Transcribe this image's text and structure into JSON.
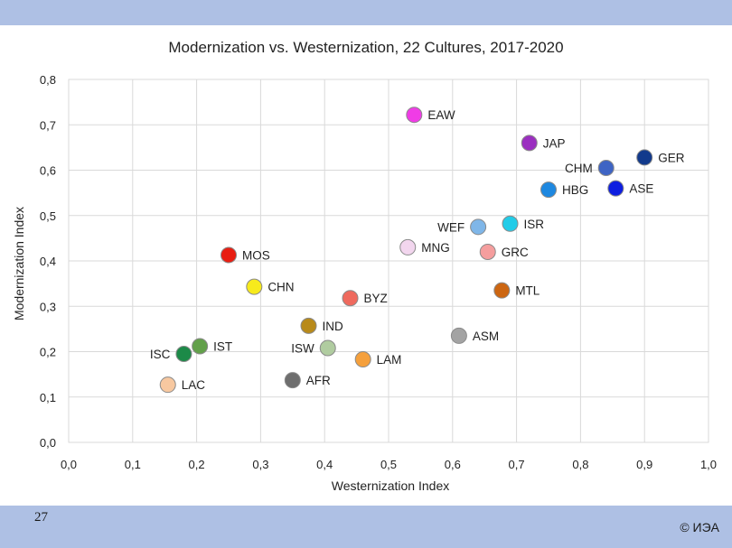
{
  "slide": {
    "page_number": "27",
    "copyright": "© ИЭА"
  },
  "chart_data": {
    "type": "scatter",
    "title": "Modernization vs. Westernization, 22 Cultures, 2017-2020",
    "xlabel": "Westernization Index",
    "ylabel": "Modernization Index",
    "xlim": [
      0,
      1.0
    ],
    "ylim": [
      0,
      0.8
    ],
    "x_ticks": [
      "0,0",
      "0,1",
      "0,2",
      "0,3",
      "0,4",
      "0,5",
      "0,6",
      "0,7",
      "0,8",
      "0,9",
      "1,0"
    ],
    "y_ticks": [
      "0,0",
      "0,1",
      "0,2",
      "0,3",
      "0,4",
      "0,5",
      "0,6",
      "0,7",
      "0,8"
    ],
    "grid": true,
    "points": [
      {
        "label": "EAW",
        "x": 0.54,
        "y": 0.722,
        "color": "#f03ce6",
        "label_side": "right"
      },
      {
        "label": "JAP",
        "x": 0.72,
        "y": 0.66,
        "color": "#9b2fc0",
        "label_side": "right"
      },
      {
        "label": "GER",
        "x": 0.9,
        "y": 0.628,
        "color": "#123a8c",
        "label_side": "right"
      },
      {
        "label": "CHM",
        "x": 0.84,
        "y": 0.605,
        "color": "#3e64c4",
        "label_side": "left"
      },
      {
        "label": "ASE",
        "x": 0.855,
        "y": 0.56,
        "color": "#0e1ee0",
        "label_side": "right"
      },
      {
        "label": "HBG",
        "x": 0.75,
        "y": 0.557,
        "color": "#1e88e0",
        "label_side": "right"
      },
      {
        "label": "ISR",
        "x": 0.69,
        "y": 0.482,
        "color": "#22cce8",
        "label_side": "right"
      },
      {
        "label": "WEF",
        "x": 0.64,
        "y": 0.475,
        "color": "#7fb6e8",
        "label_side": "left"
      },
      {
        "label": "MNG",
        "x": 0.53,
        "y": 0.43,
        "color": "#f2d6ee",
        "label_side": "right"
      },
      {
        "label": "GRC",
        "x": 0.655,
        "y": 0.42,
        "color": "#f59e9e",
        "label_side": "right"
      },
      {
        "label": "MOS",
        "x": 0.25,
        "y": 0.413,
        "color": "#e81e12",
        "label_side": "right"
      },
      {
        "label": "CHN",
        "x": 0.29,
        "y": 0.343,
        "color": "#f7ea1c",
        "label_side": "right"
      },
      {
        "label": "MTL",
        "x": 0.677,
        "y": 0.335,
        "color": "#cc6612",
        "label_side": "right"
      },
      {
        "label": "BYZ",
        "x": 0.44,
        "y": 0.318,
        "color": "#ef6a5e",
        "label_side": "right"
      },
      {
        "label": "IND",
        "x": 0.375,
        "y": 0.257,
        "color": "#b88a1a",
        "label_side": "right"
      },
      {
        "label": "ASM",
        "x": 0.61,
        "y": 0.235,
        "color": "#a3a3a3",
        "label_side": "right"
      },
      {
        "label": "IST",
        "x": 0.205,
        "y": 0.212,
        "color": "#62a04a",
        "label_side": "right"
      },
      {
        "label": "ISW",
        "x": 0.405,
        "y": 0.208,
        "color": "#b0cca0",
        "label_side": "left"
      },
      {
        "label": "ISC",
        "x": 0.18,
        "y": 0.195,
        "color": "#1c8a48",
        "label_side": "left"
      },
      {
        "label": "LAM",
        "x": 0.46,
        "y": 0.183,
        "color": "#f5a03c",
        "label_side": "right"
      },
      {
        "label": "AFR",
        "x": 0.35,
        "y": 0.137,
        "color": "#6e6e6e",
        "label_side": "right"
      },
      {
        "label": "LAC",
        "x": 0.155,
        "y": 0.127,
        "color": "#f7c8a0",
        "label_side": "right"
      }
    ]
  }
}
